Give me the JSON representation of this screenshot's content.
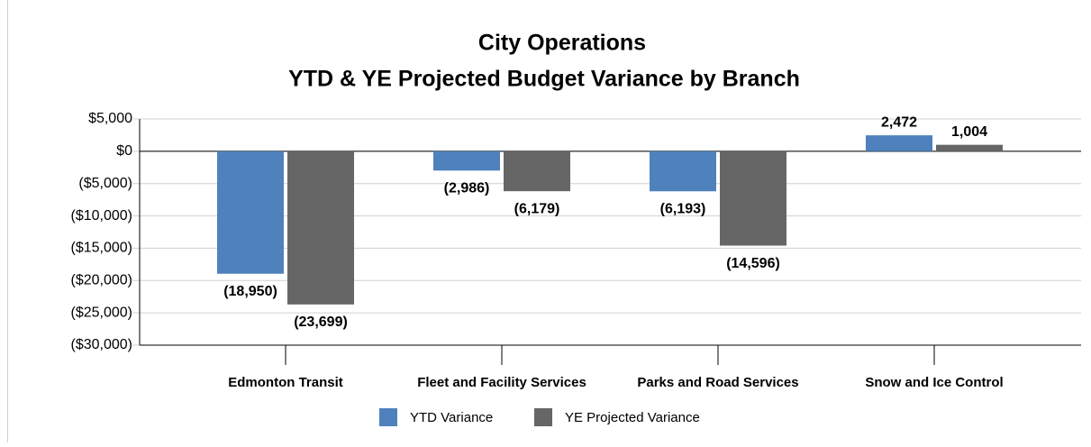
{
  "chart_data": {
    "type": "bar",
    "title": [
      "City Operations",
      "YTD & YE Projected Budget Variance by Branch"
    ],
    "categories": [
      "Edmonton Transit",
      "Fleet and Facility Services",
      "Parks and Road Services",
      "Snow and Ice Control"
    ],
    "series": [
      {
        "name": "YTD Variance",
        "color": "#4f81bd",
        "values": [
          -18950,
          -2986,
          -6193,
          2472
        ],
        "value_labels": [
          "(18,950)",
          "(2,986)",
          "(6,193)",
          "2,472"
        ]
      },
      {
        "name": "YE Projected Variance",
        "color": "#666666",
        "values": [
          -23699,
          -6179,
          -14596,
          1004
        ],
        "value_labels": [
          "(23,699)",
          "(6,179)",
          "(14,596)",
          "1,004"
        ]
      }
    ],
    "ylim": [
      -30000,
      5000
    ],
    "yticks": [
      {
        "value": -30000,
        "label": "($30,000)"
      },
      {
        "value": -25000,
        "label": "($25,000)"
      },
      {
        "value": -20000,
        "label": "($20,000)"
      },
      {
        "value": -15000,
        "label": "($15,000)"
      },
      {
        "value": -10000,
        "label": "($10,000)"
      },
      {
        "value": -5000,
        "label": "($5,000)"
      },
      {
        "value": 0,
        "label": "$0"
      },
      {
        "value": 5000,
        "label": "$5,000"
      }
    ],
    "grid": true,
    "legend": "bottom"
  }
}
